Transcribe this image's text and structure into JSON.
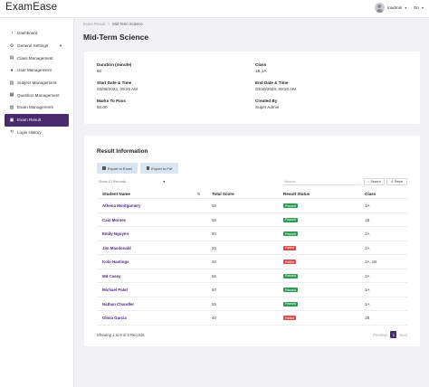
{
  "app": {
    "title": "ExamEase"
  },
  "user": {
    "name": "roadmin",
    "language": "En"
  },
  "sidebar": {
    "items": [
      {
        "label": "Dashboard",
        "icon": "dashboard-icon"
      },
      {
        "label": "General Settings",
        "icon": "gear-icon",
        "expandable": true
      },
      {
        "label": "Class Management",
        "icon": "class-icon"
      },
      {
        "label": "User Management",
        "icon": "user-icon"
      },
      {
        "label": "Subject Management",
        "icon": "book-icon"
      },
      {
        "label": "Question Management",
        "icon": "question-icon"
      },
      {
        "label": "Exam Management",
        "icon": "document-icon"
      },
      {
        "label": "Exam Result",
        "icon": "result-icon",
        "active": true
      },
      {
        "label": "Login History",
        "icon": "history-icon"
      }
    ]
  },
  "breadcrumb": {
    "parent": "Exam Result",
    "separator": ">",
    "current": "Mid-Term Science"
  },
  "page": {
    "title": "Mid-Term Science"
  },
  "details": {
    "duration": {
      "label": "Duration (minute)",
      "value": "50"
    },
    "class": {
      "label": "Class",
      "value": "1B,1A"
    },
    "start": {
      "label": "Start Date & Time",
      "value": "03/06/2023, 09:25 AM"
    },
    "end": {
      "label": "End Date & Time",
      "value": "03/30/2023, 09:20 AM"
    },
    "marks": {
      "label": "Marks To Pass",
      "value": "50.00"
    },
    "created": {
      "label": "Created By",
      "value": "Super Admin"
    }
  },
  "results": {
    "title": "Result Information",
    "export_excel": "Export to Excel",
    "export_pdf": "Export to Pdf",
    "show_records": "Show 10 Records",
    "search_placeholder": "Search...",
    "search_btn": "Search",
    "reset_btn": "Reset",
    "columns": [
      "Student Name",
      "Total Score",
      "Result Status",
      "Class"
    ],
    "rows": [
      {
        "name": "Athena Montgomery",
        "score": "55",
        "status": "Passed",
        "class": "1A"
      },
      {
        "name": "Cain Montes",
        "score": "55",
        "status": "Passed",
        "class": "1B"
      },
      {
        "name": "Emily Nguyen",
        "score": "60",
        "status": "Passed",
        "class": "1A"
      },
      {
        "name": "Jim Macdonald",
        "score": "20",
        "status": "Failed",
        "class": "1A"
      },
      {
        "name": "Kobi Hastings",
        "score": "30",
        "status": "Failed",
        "class": "1A, 1B"
      },
      {
        "name": "Md Casey",
        "score": "55",
        "status": "Passed",
        "class": "1A"
      },
      {
        "name": "Michael Patel",
        "score": "50",
        "status": "Passed",
        "class": "1A"
      },
      {
        "name": "Nathan Chandler",
        "score": "55",
        "status": "Passed",
        "class": "1A"
      },
      {
        "name": "Olivia Garcia",
        "score": "40",
        "status": "Failed",
        "class": "1B"
      }
    ],
    "summary": "Showing 1 to 9 of 9 Records",
    "pager": {
      "previous": "Previous",
      "page": "1",
      "next": "Next"
    }
  },
  "colors": {
    "accent": "#4a2a6e",
    "pass": "#2d9b52",
    "fail": "#d94a4a",
    "export": "#d7e6f0"
  }
}
